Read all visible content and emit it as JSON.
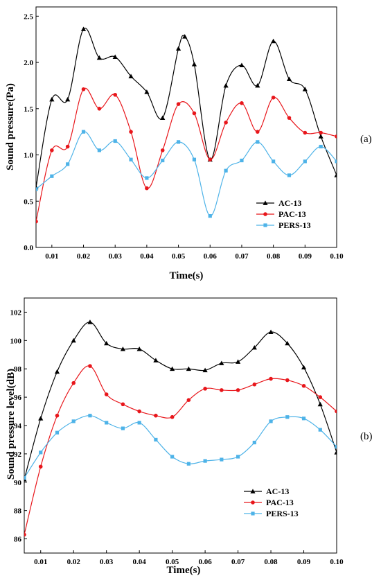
{
  "chart_data": [
    {
      "type": "line",
      "panel_label": "(a)",
      "xlabel": "Time(s)",
      "ylabel": "Sound pressure(Pa)",
      "xlim": [
        0.005,
        0.1
      ],
      "ylim": [
        0.0,
        2.6
      ],
      "xticks": [
        0.01,
        0.02,
        0.03,
        0.04,
        0.05,
        0.06,
        0.07,
        0.08,
        0.09,
        0.1
      ],
      "xtick_labels": [
        "0.01",
        "0.02",
        "0.03",
        "0.04",
        "0.05",
        "0.06",
        "0.07",
        "0.08",
        "0.09",
        "0.10"
      ],
      "yticks": [
        0.0,
        0.5,
        1.0,
        1.5,
        2.0,
        2.5
      ],
      "ytick_labels": [
        "0.0",
        "0.5",
        "1.0",
        "1.5",
        "2.0",
        "2.5"
      ],
      "legend_position": "lower-right",
      "series": [
        {
          "name": "AC-13",
          "color": "#000000",
          "marker": "triangle",
          "x": [
            0.005,
            0.01,
            0.015,
            0.02,
            0.025,
            0.03,
            0.035,
            0.04,
            0.045,
            0.05,
            0.052,
            0.055,
            0.06,
            0.065,
            0.07,
            0.075,
            0.08,
            0.085,
            0.09,
            0.095,
            0.1
          ],
          "y": [
            0.65,
            1.6,
            1.6,
            2.36,
            2.05,
            2.06,
            1.85,
            1.68,
            1.4,
            2.15,
            2.28,
            1.98,
            0.95,
            1.75,
            1.97,
            1.75,
            2.23,
            1.82,
            1.71,
            1.2,
            0.78
          ]
        },
        {
          "name": "PAC-13",
          "color": "#e8161b",
          "marker": "circle",
          "x": [
            0.005,
            0.01,
            0.015,
            0.02,
            0.025,
            0.03,
            0.035,
            0.04,
            0.045,
            0.05,
            0.055,
            0.06,
            0.065,
            0.07,
            0.075,
            0.08,
            0.085,
            0.09,
            0.095,
            0.1
          ],
          "y": [
            0.28,
            1.05,
            1.09,
            1.71,
            1.5,
            1.65,
            1.25,
            0.64,
            1.05,
            1.55,
            1.45,
            0.95,
            1.35,
            1.56,
            1.25,
            1.62,
            1.4,
            1.24,
            1.24,
            1.2
          ]
        },
        {
          "name": "PERS-13",
          "color": "#4eb3e8",
          "marker": "square",
          "x": [
            0.005,
            0.01,
            0.015,
            0.02,
            0.025,
            0.03,
            0.035,
            0.04,
            0.045,
            0.05,
            0.055,
            0.06,
            0.065,
            0.07,
            0.075,
            0.08,
            0.085,
            0.09,
            0.095,
            0.1
          ],
          "y": [
            0.63,
            0.77,
            0.9,
            1.25,
            1.05,
            1.15,
            0.95,
            0.75,
            0.94,
            1.14,
            0.95,
            0.34,
            0.83,
            0.94,
            1.14,
            0.93,
            0.78,
            0.93,
            1.09,
            0.93
          ]
        }
      ]
    },
    {
      "type": "line",
      "panel_label": "(b)",
      "xlabel": "Time(s)",
      "ylabel": "Sound pressure level(dB)",
      "xlim": [
        0.005,
        0.1
      ],
      "ylim": [
        85,
        103
      ],
      "xticks": [
        0.01,
        0.02,
        0.03,
        0.04,
        0.05,
        0.06,
        0.07,
        0.08,
        0.09,
        0.1
      ],
      "xtick_labels": [
        "0.01",
        "0.02",
        "0.03",
        "0.04",
        "0.05",
        "0.06",
        "0.07",
        "0.08",
        "0.09",
        "0.10"
      ],
      "yticks": [
        86,
        88,
        90,
        92,
        94,
        96,
        98,
        100,
        102
      ],
      "ytick_labels": [
        "86",
        "88",
        "90",
        "92",
        "94",
        "96",
        "98",
        "100",
        "102"
      ],
      "legend_position": "lower-left",
      "series": [
        {
          "name": "AC-13",
          "color": "#000000",
          "marker": "triangle",
          "x": [
            0.005,
            0.01,
            0.015,
            0.02,
            0.025,
            0.03,
            0.035,
            0.04,
            0.045,
            0.05,
            0.055,
            0.06,
            0.065,
            0.07,
            0.075,
            0.08,
            0.085,
            0.09,
            0.095,
            0.1
          ],
          "y": [
            90.2,
            94.5,
            97.8,
            100.0,
            101.3,
            99.8,
            99.4,
            99.4,
            98.6,
            98.0,
            98.0,
            97.9,
            98.4,
            98.5,
            99.5,
            100.6,
            99.8,
            98.1,
            95.5,
            92.1
          ]
        },
        {
          "name": "PAC-13",
          "color": "#e8161b",
          "marker": "circle",
          "x": [
            0.005,
            0.01,
            0.015,
            0.02,
            0.025,
            0.03,
            0.035,
            0.04,
            0.045,
            0.05,
            0.055,
            0.06,
            0.065,
            0.07,
            0.075,
            0.08,
            0.085,
            0.09,
            0.095,
            0.1
          ],
          "y": [
            86.3,
            91.1,
            94.7,
            97.0,
            98.2,
            96.2,
            95.5,
            95.0,
            94.7,
            94.6,
            95.8,
            96.6,
            96.5,
            96.5,
            96.9,
            97.3,
            97.2,
            96.8,
            96.0,
            95.0
          ]
        },
        {
          "name": "PERS-13",
          "color": "#4eb3e8",
          "marker": "square",
          "x": [
            0.005,
            0.01,
            0.015,
            0.02,
            0.025,
            0.03,
            0.035,
            0.04,
            0.045,
            0.05,
            0.055,
            0.06,
            0.065,
            0.07,
            0.075,
            0.08,
            0.085,
            0.09,
            0.095,
            0.1
          ],
          "y": [
            90.3,
            92.1,
            93.5,
            94.3,
            94.7,
            94.2,
            93.8,
            94.2,
            93.0,
            91.8,
            91.3,
            91.5,
            91.6,
            91.8,
            92.8,
            94.3,
            94.6,
            94.5,
            93.7,
            92.5
          ]
        }
      ]
    }
  ]
}
